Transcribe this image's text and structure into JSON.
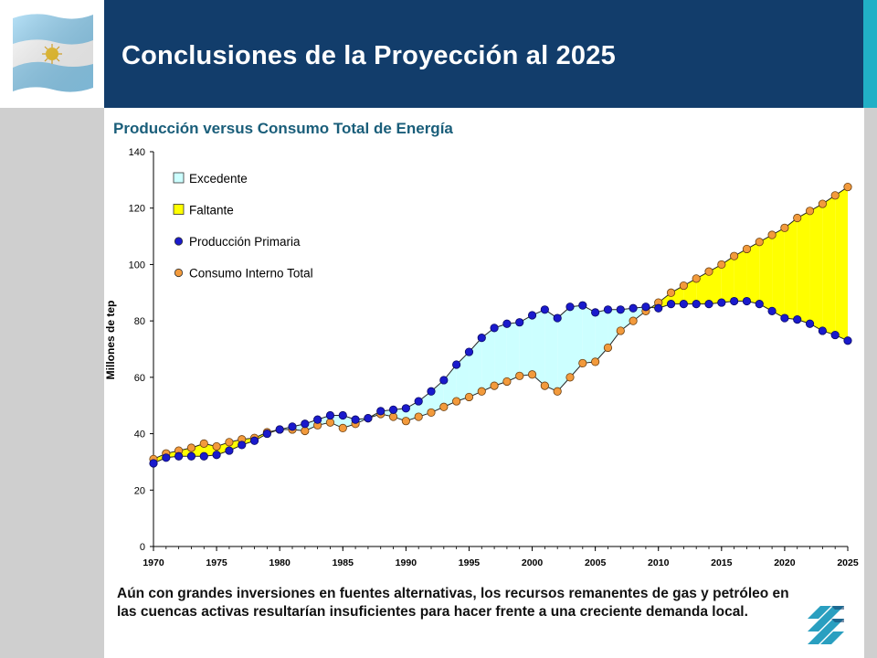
{
  "slide": {
    "title": "Conclusiones de la Proyección al 2025",
    "chart_heading": "Producción versus Consumo Total de Energía",
    "conclusion": "Aún con grandes inversiones en fuentes alternativas, los recursos remanentes de gas y petróleo en las cuencas activas resultarían insuficientes para hacer frente a una creciente demanda local."
  },
  "colors": {
    "header": "#123d6b",
    "accent": "#21b0c6",
    "excedente": "#ccffff",
    "faltante": "#ffff00",
    "produccion": "#1a1acc",
    "consumo": "#f29a3c"
  },
  "chart_data": {
    "type": "line",
    "title": "Producción versus Consumo Total de Energía",
    "xlabel": "",
    "ylabel": "Millones de tep",
    "xlim": [
      1970,
      2025
    ],
    "ylim": [
      0,
      140
    ],
    "x_ticks": [
      1970,
      1975,
      1980,
      1985,
      1990,
      1995,
      2000,
      2005,
      2010,
      2015,
      2020,
      2025
    ],
    "y_ticks": [
      0,
      20,
      40,
      60,
      80,
      100,
      120,
      140
    ],
    "grid": false,
    "legend_position": "top-left",
    "legend": [
      "Excedente",
      "Faltante",
      "Producción Primaria",
      "Consumo Interno Total"
    ],
    "x": [
      1970,
      1971,
      1972,
      1973,
      1974,
      1975,
      1976,
      1977,
      1978,
      1979,
      1980,
      1981,
      1982,
      1983,
      1984,
      1985,
      1986,
      1987,
      1988,
      1989,
      1990,
      1991,
      1992,
      1993,
      1994,
      1995,
      1996,
      1997,
      1998,
      1999,
      2000,
      2001,
      2002,
      2003,
      2004,
      2005,
      2006,
      2007,
      2008,
      2009,
      2010,
      2011,
      2012,
      2013,
      2014,
      2015,
      2016,
      2017,
      2018,
      2019,
      2020,
      2021,
      2022,
      2023,
      2024,
      2025
    ],
    "series": [
      {
        "name": "Producción Primaria",
        "values": [
          29.5,
          31.5,
          32,
          32,
          32,
          32.5,
          34,
          36,
          37.5,
          40,
          41.5,
          42.5,
          43.5,
          45,
          46.5,
          46.5,
          45,
          45.5,
          48,
          48.5,
          49,
          51.5,
          55,
          59,
          64.5,
          69,
          74,
          77.5,
          79,
          79.5,
          82,
          84,
          81,
          85,
          85.5,
          83,
          84,
          84,
          84.5,
          85,
          84.5,
          86,
          86,
          86,
          86,
          86.5,
          87,
          87,
          86,
          83.5,
          81,
          80.5,
          79,
          76.5,
          75,
          73
        ]
      },
      {
        "name": "Consumo Interno Total",
        "values": [
          31,
          33,
          34,
          35,
          36.5,
          35.5,
          37,
          38,
          38.5,
          40.5,
          41.5,
          41.5,
          41,
          43,
          44,
          42,
          43.5,
          45.5,
          47,
          46,
          44.5,
          46,
          47.5,
          49.5,
          51.5,
          53,
          55,
          57,
          58.5,
          60.5,
          61,
          57,
          55,
          60,
          65,
          65.5,
          70.5,
          76.5,
          80,
          83.5,
          86.5,
          90,
          92.5,
          95,
          97.5,
          100,
          103,
          105.5,
          108,
          110.5,
          113,
          116.5,
          119,
          121.5,
          124.5,
          127.5
        ]
      }
    ]
  }
}
